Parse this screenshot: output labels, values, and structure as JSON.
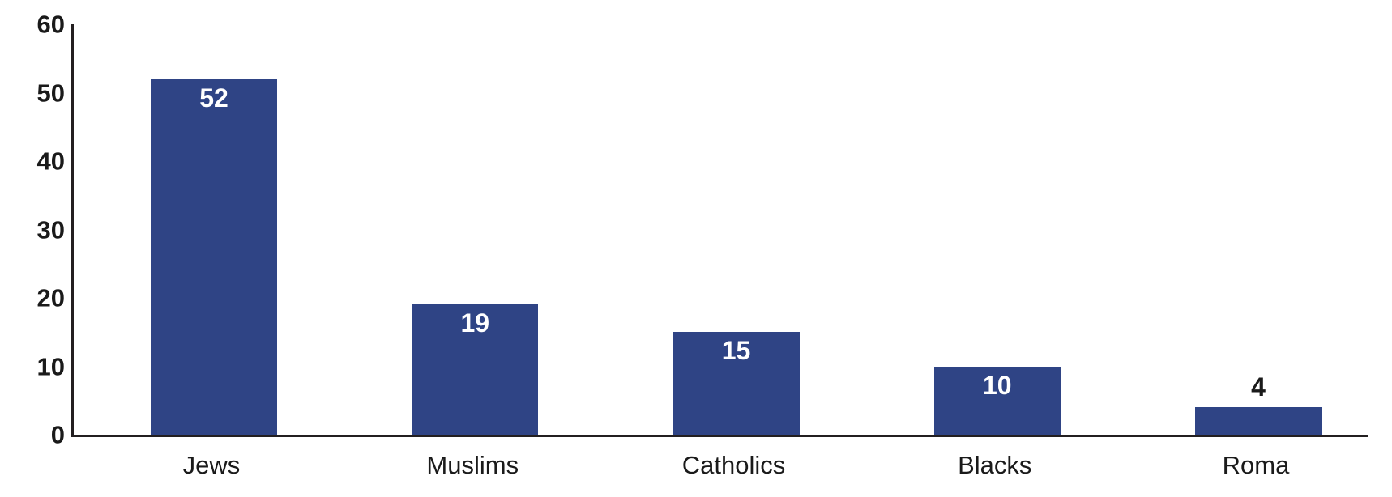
{
  "chart_data": {
    "type": "bar",
    "categories": [
      "Jews",
      "Muslims",
      "Catholics",
      "Blacks",
      "Roma"
    ],
    "values": [
      52,
      19,
      15,
      10,
      4
    ],
    "value_labels": [
      "52",
      "19",
      "15",
      "10",
      "4"
    ],
    "value_label_placement": [
      "inside-top",
      "inside-top",
      "inside-top",
      "inside-top",
      "above"
    ],
    "title": "",
    "xlabel": "",
    "ylabel": "",
    "ylim": [
      0,
      60
    ],
    "yticks": [
      0,
      10,
      20,
      30,
      40,
      50,
      60
    ],
    "grid": false,
    "legend": null,
    "colors": {
      "bar": "#2F4485",
      "axis": "#231F20",
      "y_tick_label": "#1A1A1A",
      "category_label": "#1A1A1A",
      "value_label_inside": "#FFFFFF",
      "value_label_above": "#1A1A1A",
      "background": "#FFFFFF"
    }
  }
}
